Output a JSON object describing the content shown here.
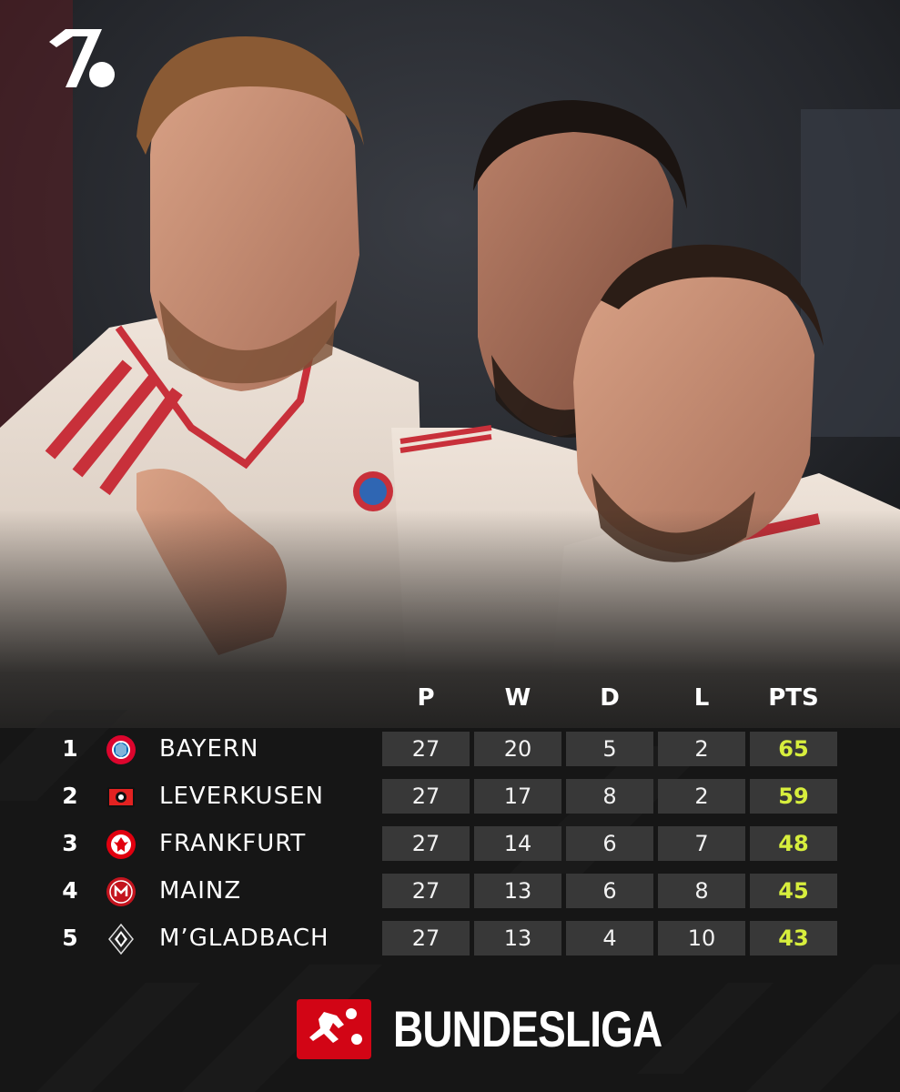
{
  "colors": {
    "background": "#161616",
    "cell": "#383838",
    "points": "#d7ee3d",
    "bundesliga_red": "#d20515"
  },
  "brand_logo": {
    "icon": "onefootball-logo-icon"
  },
  "table": {
    "headers": {
      "played": "P",
      "won": "W",
      "drawn": "D",
      "lost": "L",
      "points": "PTS"
    },
    "rows": [
      {
        "rank": "1",
        "team": "BAYERN",
        "crest": "bayern-crest-icon",
        "p": "27",
        "w": "20",
        "d": "5",
        "l": "2",
        "pts": "65"
      },
      {
        "rank": "2",
        "team": "LEVERKUSEN",
        "crest": "leverkusen-crest-icon",
        "p": "27",
        "w": "17",
        "d": "8",
        "l": "2",
        "pts": "59"
      },
      {
        "rank": "3",
        "team": "FRANKFURT",
        "crest": "frankfurt-crest-icon",
        "p": "27",
        "w": "14",
        "d": "6",
        "l": "7",
        "pts": "48"
      },
      {
        "rank": "4",
        "team": "MAINZ",
        "crest": "mainz-crest-icon",
        "p": "27",
        "w": "13",
        "d": "6",
        "l": "8",
        "pts": "45"
      },
      {
        "rank": "5",
        "team": "M’GLADBACH",
        "crest": "gladbach-crest-icon",
        "p": "27",
        "w": "13",
        "d": "4",
        "l": "10",
        "pts": "43"
      }
    ]
  },
  "footer": {
    "league_name": "BUNDESLIGA",
    "league_logo": "bundesliga-logo-icon"
  }
}
